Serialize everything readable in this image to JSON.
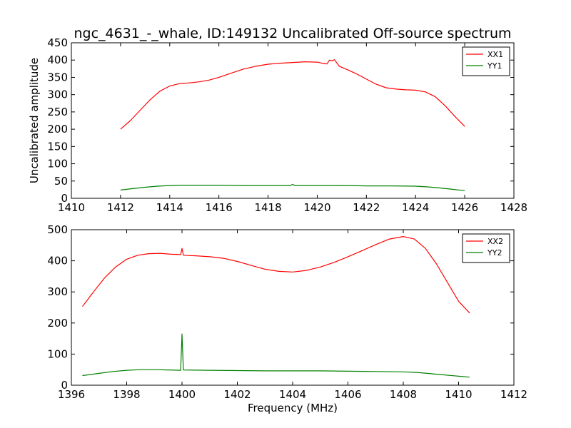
{
  "title": "ngc_4631_-_whale, ID:149132 Uncalibrated Off-source spectrum",
  "ylabel": "Uncalibrated amplitude",
  "xlabel": "Frequency (MHz)",
  "chart_data": [
    {
      "type": "line",
      "title": "ngc_4631_-_whale, ID:149132 Uncalibrated Off-source spectrum",
      "xlabel": "",
      "ylabel": "Uncalibrated amplitude",
      "xlim": [
        1410,
        1428
      ],
      "ylim": [
        0,
        450
      ],
      "xticks": [
        1410,
        1412,
        1414,
        1416,
        1418,
        1420,
        1422,
        1424,
        1426,
        1428
      ],
      "yticks": [
        0,
        50,
        100,
        150,
        200,
        250,
        300,
        350,
        400,
        450
      ],
      "legend_position": "top-right",
      "series": [
        {
          "name": "XX1",
          "color": "#ff0000",
          "x": [
            1412.0,
            1412.4,
            1412.8,
            1413.2,
            1413.6,
            1414.0,
            1414.4,
            1414.8,
            1415.2,
            1415.6,
            1416.0,
            1416.5,
            1417.0,
            1417.5,
            1418.0,
            1418.5,
            1419.0,
            1419.5,
            1420.0,
            1420.2,
            1420.4,
            1420.5,
            1420.6,
            1420.7,
            1420.9,
            1421.2,
            1421.6,
            1422.0,
            1422.4,
            1422.8,
            1423.2,
            1423.6,
            1424.0,
            1424.4,
            1424.8,
            1425.2,
            1425.6,
            1426.0
          ],
          "values": [
            200,
            225,
            255,
            285,
            310,
            325,
            332,
            334,
            337,
            342,
            350,
            362,
            374,
            382,
            388,
            391,
            393,
            395,
            394,
            391,
            389,
            400,
            398,
            401,
            382,
            373,
            360,
            345,
            330,
            320,
            316,
            314,
            313,
            308,
            294,
            268,
            237,
            208
          ]
        },
        {
          "name": "YY1",
          "color": "#008000",
          "x": [
            1412.0,
            1412.5,
            1413.0,
            1413.5,
            1414.0,
            1414.5,
            1415.0,
            1416.0,
            1417.0,
            1418.0,
            1418.9,
            1419.0,
            1419.1,
            1420.0,
            1421.0,
            1422.0,
            1423.0,
            1424.0,
            1424.5,
            1425.0,
            1425.5,
            1426.0
          ],
          "values": [
            24,
            28,
            32,
            35,
            37,
            38,
            38,
            38,
            37,
            37,
            37,
            40,
            37,
            37,
            37,
            36,
            36,
            35,
            33,
            30,
            26,
            22
          ]
        }
      ]
    },
    {
      "type": "line",
      "title": "",
      "xlabel": "Frequency (MHz)",
      "ylabel": "",
      "xlim": [
        1396,
        1412
      ],
      "ylim": [
        0,
        500
      ],
      "xticks": [
        1396,
        1398,
        1400,
        1402,
        1404,
        1406,
        1408,
        1410,
        1412
      ],
      "yticks": [
        0,
        100,
        200,
        300,
        400,
        500
      ],
      "legend_position": "top-right",
      "series": [
        {
          "name": "XX2",
          "color": "#ff0000",
          "x": [
            1396.4,
            1396.8,
            1397.2,
            1397.6,
            1398.0,
            1398.4,
            1398.8,
            1399.2,
            1399.6,
            1399.95,
            1400.0,
            1400.05,
            1400.5,
            1401.0,
            1401.5,
            1402.0,
            1402.5,
            1403.0,
            1403.5,
            1404.0,
            1404.5,
            1405.0,
            1405.5,
            1406.0,
            1406.5,
            1407.0,
            1407.5,
            1408.0,
            1408.4,
            1408.8,
            1409.2,
            1409.6,
            1410.0,
            1410.4
          ],
          "values": [
            253,
            300,
            345,
            380,
            405,
            418,
            423,
            424,
            421,
            420,
            440,
            418,
            416,
            413,
            408,
            398,
            385,
            373,
            366,
            364,
            369,
            380,
            395,
            413,
            432,
            452,
            470,
            478,
            470,
            440,
            390,
            330,
            270,
            232
          ]
        },
        {
          "name": "YY2",
          "color": "#008000",
          "x": [
            1396.4,
            1397.0,
            1397.5,
            1398.0,
            1398.5,
            1399.0,
            1399.5,
            1399.95,
            1400.0,
            1400.05,
            1401.0,
            1402.0,
            1403.0,
            1404.0,
            1405.0,
            1406.0,
            1407.0,
            1408.0,
            1408.5,
            1409.0,
            1409.5,
            1410.0,
            1410.4
          ],
          "values": [
            31,
            38,
            44,
            48,
            50,
            50,
            49,
            48,
            165,
            49,
            48,
            47,
            46,
            46,
            46,
            45,
            44,
            43,
            41,
            37,
            33,
            29,
            26
          ]
        }
      ]
    }
  ]
}
